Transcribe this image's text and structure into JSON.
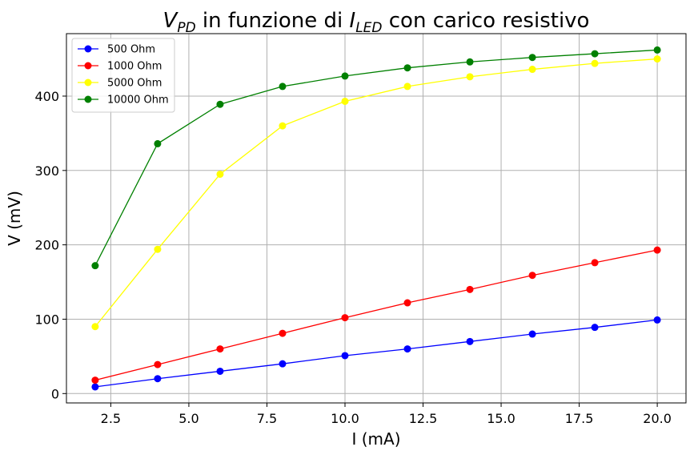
{
  "chart_data": {
    "type": "line",
    "title": {
      "v": "V",
      "v_sub": "PD",
      "middle": " in funzione di ",
      "i": "I",
      "i_sub": "LED",
      "end": " con carico resistivo"
    },
    "xlabel": "I (mA)",
    "ylabel": "V (mV)",
    "xlim": [
      1.08,
      20.92
    ],
    "ylim": [
      -12.6,
      484
    ],
    "xticks": [
      2.5,
      5.0,
      7.5,
      10.0,
      12.5,
      15.0,
      17.5,
      20.0
    ],
    "xtick_labels": [
      "2.5",
      "5.0",
      "7.5",
      "10.0",
      "12.5",
      "15.0",
      "17.5",
      "20.0"
    ],
    "yticks": [
      0,
      100,
      200,
      300,
      400
    ],
    "ytick_labels": [
      "0",
      "100",
      "200",
      "300",
      "400"
    ],
    "grid": true,
    "legend_position": "top-left",
    "x": [
      2,
      4,
      6,
      8,
      10,
      12,
      14,
      16,
      18,
      20
    ],
    "series": [
      {
        "name": "500 Ohm",
        "color": "#0000ff",
        "values": [
          9,
          20,
          30,
          40,
          51,
          60,
          70,
          80,
          89,
          99
        ]
      },
      {
        "name": "1000 Ohm",
        "color": "#ff0000",
        "values": [
          18,
          39,
          60,
          81,
          102,
          122,
          140,
          159,
          176,
          193
        ]
      },
      {
        "name": "5000 Ohm",
        "color": "#ffff00",
        "values": [
          90,
          194,
          295,
          360,
          393,
          413,
          426,
          436,
          444,
          450
        ]
      },
      {
        "name": "10000 Ohm",
        "color": "#008000",
        "values": [
          172,
          336,
          389,
          413,
          427,
          438,
          446,
          452,
          457,
          462
        ]
      }
    ]
  }
}
